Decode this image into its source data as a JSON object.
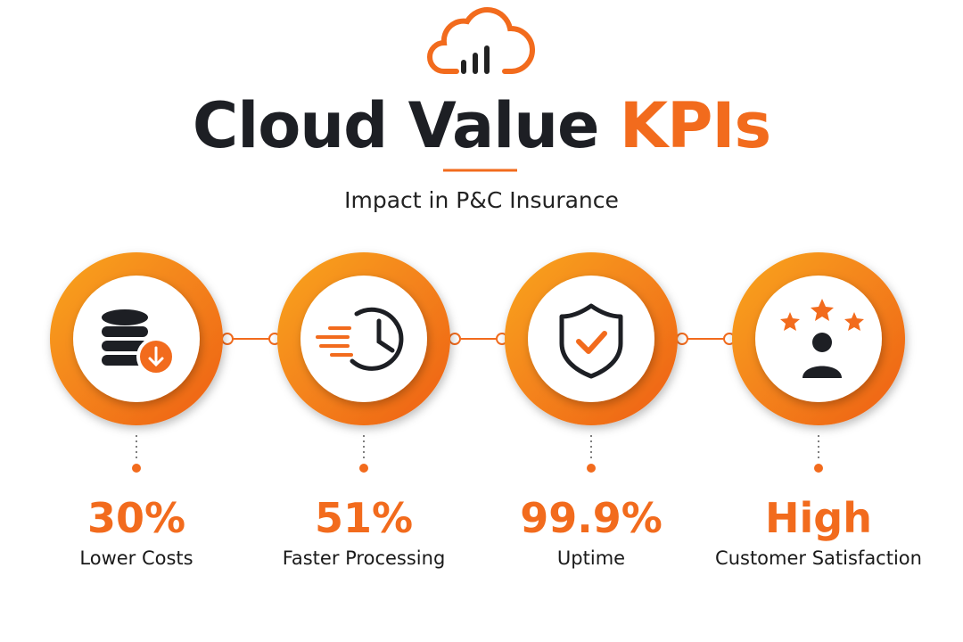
{
  "header": {
    "title_main": "Cloud Value",
    "title_accent": "KPIs",
    "subtitle": "Impact in P&C Insurance"
  },
  "kpis": [
    {
      "value": "30%",
      "label": "Lower Costs"
    },
    {
      "value": "51%",
      "label": "Faster Processing"
    },
    {
      "value": "99.9%",
      "label": "Uptime"
    },
    {
      "value": "High",
      "label": "Customer Satisfaction"
    }
  ]
}
